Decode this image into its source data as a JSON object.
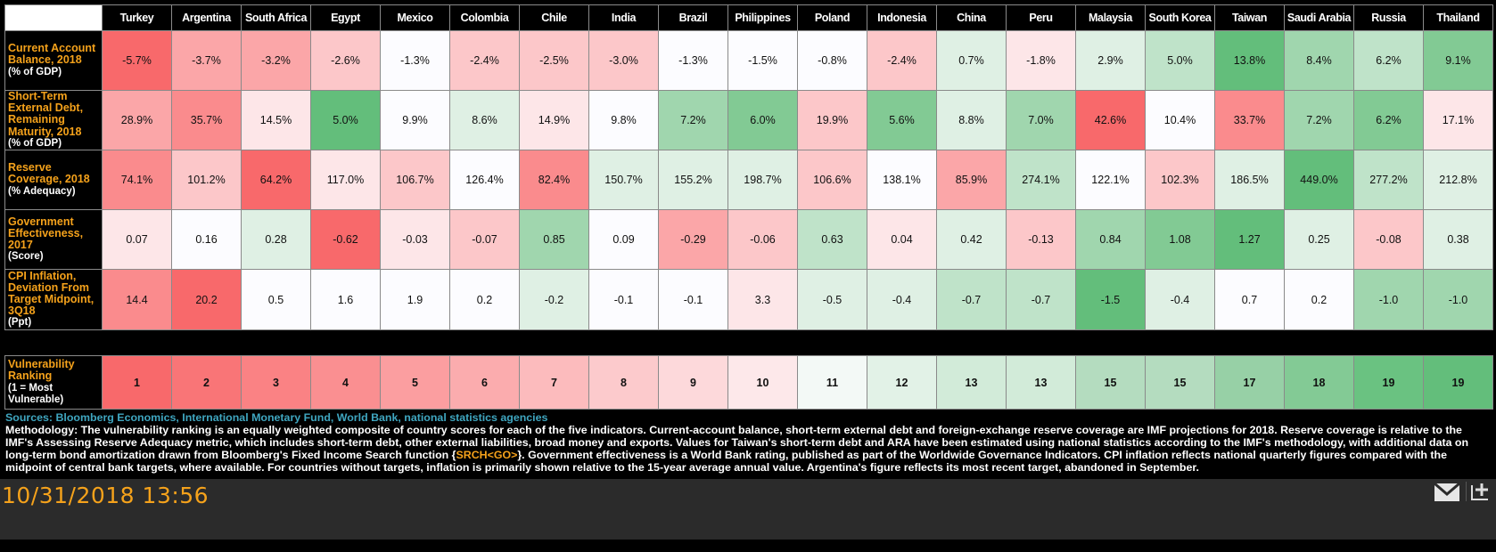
{
  "columns": [
    "Turkey",
    "Argentina",
    "South Africa",
    "Egypt",
    "Mexico",
    "Colombia",
    "Chile",
    "India",
    "Brazil",
    "Philippines",
    "Poland",
    "Indonesia",
    "China",
    "Peru",
    "Malaysia",
    "South Korea",
    "Taiwan",
    "Saudi Arabia",
    "Russia",
    "Thailand"
  ],
  "palette": {
    "R5": "#f8696b",
    "R4": "#fa8b8d",
    "R3": "#fba6a8",
    "R2": "#fcc7c9",
    "R1": "#fde6e8",
    "W": "#fcfcff",
    "G1": "#dff0e4",
    "G2": "#bfe3c9",
    "G3": "#a0d6ae",
    "G4": "#82ca94",
    "G5": "#63be7b"
  },
  "rows": [
    {
      "label": "Current Account Balance, 2018",
      "unit": "(% of GDP)",
      "values": [
        "-5.7%",
        "-3.7%",
        "-3.2%",
        "-2.6%",
        "-1.3%",
        "-2.4%",
        "-2.5%",
        "-3.0%",
        "-1.3%",
        "-1.5%",
        "-0.8%",
        "-2.4%",
        "0.7%",
        "-1.8%",
        "2.9%",
        "5.0%",
        "13.8%",
        "8.4%",
        "6.2%",
        "9.1%"
      ],
      "colors": [
        "R5",
        "R3",
        "R3",
        "R2",
        "W",
        "R2",
        "R2",
        "R2",
        "W",
        "W",
        "W",
        "R2",
        "G1",
        "R1",
        "G1",
        "G2",
        "G5",
        "G3",
        "G2",
        "G4"
      ]
    },
    {
      "label": "Short-Term External Debt, Remaining Maturity, 2018",
      "unit": "(% of GDP)",
      "values": [
        "28.9%",
        "35.7%",
        "14.5%",
        "5.0%",
        "9.9%",
        "8.6%",
        "14.9%",
        "9.8%",
        "7.2%",
        "6.0%",
        "19.9%",
        "5.6%",
        "8.8%",
        "7.0%",
        "42.6%",
        "10.4%",
        "33.7%",
        "7.2%",
        "6.2%",
        "17.1%"
      ],
      "colors": [
        "R3",
        "R4",
        "R1",
        "G5",
        "W",
        "G1",
        "R1",
        "W",
        "G3",
        "G4",
        "R2",
        "G4",
        "G1",
        "G3",
        "R5",
        "W",
        "R4",
        "G3",
        "G4",
        "R1"
      ]
    },
    {
      "label": "Reserve Coverage, 2018",
      "unit": "(% Adequacy)",
      "values": [
        "74.1%",
        "101.2%",
        "64.2%",
        "117.0%",
        "106.7%",
        "126.4%",
        "82.4%",
        "150.7%",
        "155.2%",
        "198.7%",
        "106.6%",
        "138.1%",
        "85.9%",
        "274.1%",
        "122.1%",
        "102.3%",
        "186.5%",
        "449.0%",
        "277.2%",
        "212.8%"
      ],
      "colors": [
        "R4",
        "R2",
        "R5",
        "R1",
        "R2",
        "W",
        "R4",
        "G1",
        "G1",
        "G1",
        "R2",
        "W",
        "R3",
        "G2",
        "W",
        "R2",
        "G1",
        "G5",
        "G2",
        "G1"
      ]
    },
    {
      "label": "Government Effectiveness, 2017",
      "unit": "(Score)",
      "values": [
        "0.07",
        "0.16",
        "0.28",
        "-0.62",
        "-0.03",
        "-0.07",
        "0.85",
        "0.09",
        "-0.29",
        "-0.06",
        "0.63",
        "0.04",
        "0.42",
        "-0.13",
        "0.84",
        "1.08",
        "1.27",
        "0.25",
        "-0.08",
        "0.38"
      ],
      "colors": [
        "R1",
        "W",
        "G1",
        "R5",
        "R1",
        "R2",
        "G3",
        "W",
        "R3",
        "R2",
        "G2",
        "R1",
        "G1",
        "R2",
        "G3",
        "G4",
        "G5",
        "G1",
        "R2",
        "G1"
      ]
    },
    {
      "label": "CPI Inflation, Deviation From Target Midpoint, 3Q18",
      "unit": "(Ppt)",
      "values": [
        "14.4",
        "20.2",
        "0.5",
        "1.6",
        "1.9",
        "0.2",
        "-0.2",
        "-0.1",
        "-0.1",
        "3.3",
        "-0.5",
        "-0.4",
        "-0.7",
        "-0.7",
        "-1.5",
        "-0.4",
        "0.7",
        "0.2",
        "-1.0",
        "-1.0"
      ],
      "colors": [
        "R4",
        "R5",
        "W",
        "W",
        "W",
        "W",
        "G1",
        "W",
        "W",
        "R1",
        "G1",
        "G1",
        "G2",
        "G2",
        "G5",
        "G1",
        "W",
        "W",
        "G3",
        "G3"
      ]
    }
  ],
  "ranking": {
    "label": "Vulnerability Ranking",
    "unit": "(1 = Most Vulnerable)",
    "values": [
      "1",
      "2",
      "3",
      "4",
      "5",
      "6",
      "7",
      "8",
      "9",
      "10",
      "11",
      "12",
      "13",
      "13",
      "15",
      "15",
      "17",
      "18",
      "19",
      "19"
    ],
    "colors": [
      "#f8696b",
      "#f97577",
      "#fa8284",
      "#fa8f91",
      "#fb9ea0",
      "#fbacae",
      "#fcbbbd",
      "#fccacc",
      "#fdd9db",
      "#fde8ea",
      "#f3f9f6",
      "#e2f2e7",
      "#d2ebd9",
      "#d2ebd9",
      "#b4dcbf",
      "#b4dcbf",
      "#97d0a6",
      "#83ca95",
      "#6ac281",
      "#63be7b"
    ]
  },
  "notes": {
    "sources": "Sources: Bloomberg Economics, International Monetary Fund, World Bank, national statistics agencies",
    "methodology_1": "Methodology: The vulnerability ranking is an equally weighted composite of country scores for each of the five indicators. Current-account balance, short-term external debt and foreign-exchange reserve coverage are IMF projections for 2018. Reserve coverage is relative to the IMF's Assessing Reserve Adequacy metric, which includes short-term debt, other external liabilities, broad money and exports. Values for Taiwan's short-term debt and ARA have been estimated using national statistics according to the IMF's methodology, with additional data on long-term bond amortization drawn from Bloomberg's Fixed Income Search function {",
    "function_link": "SRCH<GO>",
    "methodology_2": "}. Government effectiveness is a World Bank rating, published as part of the Worldwide Governance Indicators. CPI inflation reflects national quarterly figures compared with the midpoint of central bank targets, where available. For countries without targets, inflation is primarily shown relative to the 15-year average annual value. Argentina's figure reflects its most recent target, abandoned in September."
  },
  "footer": {
    "timestamp": "10/31/2018 13:56",
    "icons": [
      "mail-icon",
      "expand-icon"
    ]
  }
}
